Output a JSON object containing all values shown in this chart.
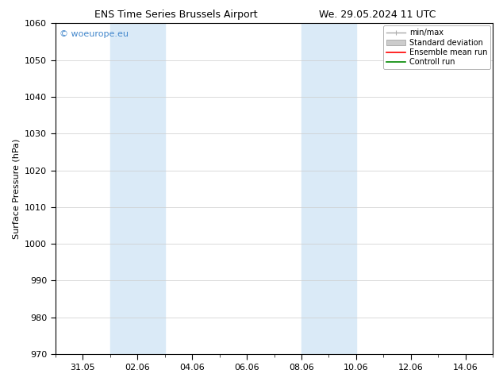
{
  "title_left": "ENS Time Series Brussels Airport",
  "title_right": "We. 29.05.2024 11 UTC",
  "ylabel": "Surface Pressure (hPa)",
  "ylim": [
    970,
    1060
  ],
  "yticks": [
    970,
    980,
    990,
    1000,
    1010,
    1020,
    1030,
    1040,
    1050,
    1060
  ],
  "xlim": [
    0,
    16
  ],
  "xtick_labels": [
    "31.05",
    "02.06",
    "04.06",
    "06.06",
    "08.06",
    "10.06",
    "12.06",
    "14.06"
  ],
  "xtick_positions": [
    1,
    3,
    5,
    7,
    9,
    11,
    13,
    15
  ],
  "shaded_bands": [
    {
      "xmin": 2.0,
      "xmax": 4.0
    },
    {
      "xmin": 9.0,
      "xmax": 11.0
    }
  ],
  "shaded_color": "#daeaf7",
  "watermark_text": "© woeurope.eu",
  "watermark_color": "#4488cc",
  "legend_entries": [
    {
      "label": "min/max",
      "color": "#aaaaaa",
      "lw": 1.0,
      "type": "line_capped"
    },
    {
      "label": "Standard deviation",
      "color": "#cccccc",
      "lw": 5,
      "type": "patch"
    },
    {
      "label": "Ensemble mean run",
      "color": "#ff0000",
      "lw": 1.2,
      "type": "line"
    },
    {
      "label": "Controll run",
      "color": "#008800",
      "lw": 1.2,
      "type": "line"
    }
  ],
  "bg_color": "#ffffff",
  "grid_color": "#cccccc",
  "font_family": "DejaVu Sans",
  "font_size": 8,
  "title_font_size": 9,
  "ylabel_font_size": 8,
  "watermark_font_size": 8
}
